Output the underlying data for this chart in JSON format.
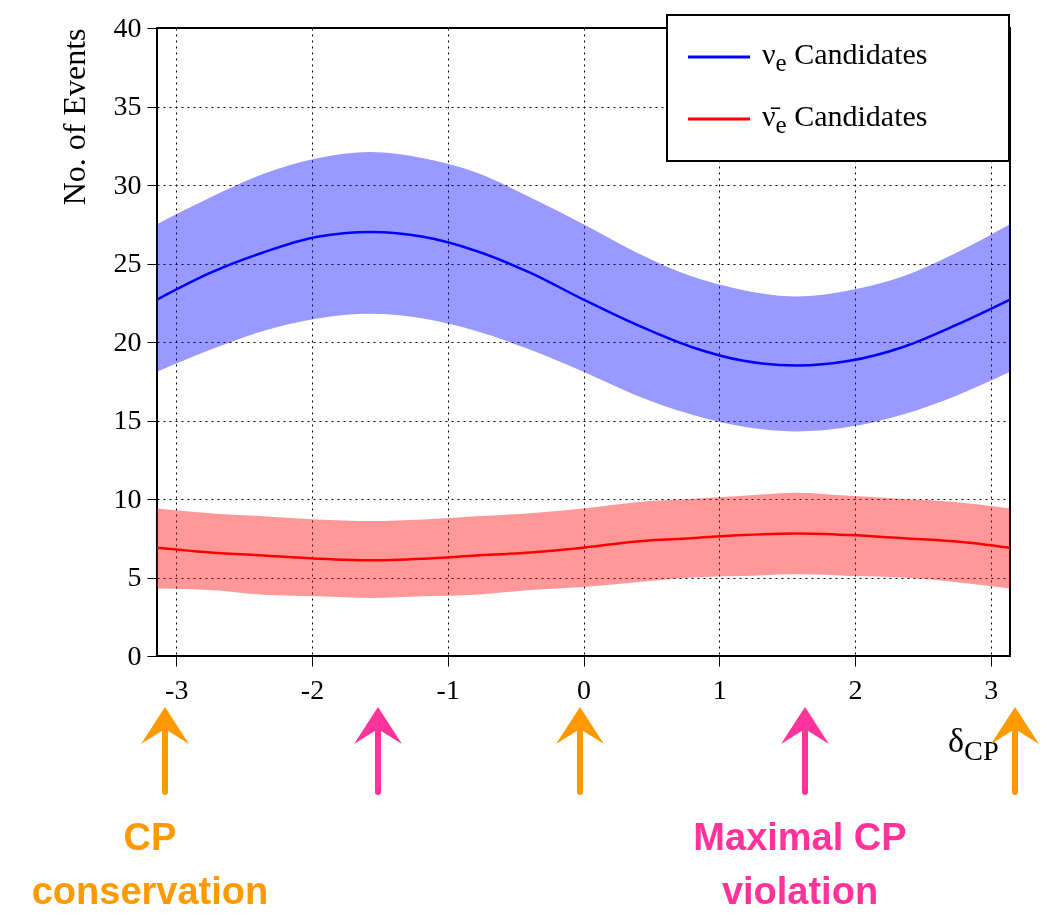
{
  "chart_data": {
    "type": "line",
    "xlabel": "δ$_{CP}$",
    "ylabel": "No. of Events",
    "x": [
      -3.1416,
      -2.75,
      -2.36,
      -1.96,
      -1.57,
      -1.18,
      -0.79,
      -0.39,
      0,
      0.39,
      0.79,
      1.18,
      1.57,
      1.96,
      2.36,
      2.75,
      3.1416
    ],
    "series": [
      {
        "name": "ν$_{e}$ Candidates",
        "color": "#0000ff",
        "values": [
          22.7,
          24.4,
          25.7,
          26.7,
          27.0,
          26.7,
          25.8,
          24.4,
          22.7,
          21.1,
          19.7,
          18.8,
          18.5,
          18.8,
          19.7,
          21.1,
          22.7
        ],
        "lower": [
          18.1,
          19.5,
          20.7,
          21.5,
          21.8,
          21.5,
          20.7,
          19.5,
          18.1,
          16.6,
          15.4,
          14.6,
          14.3,
          14.6,
          15.4,
          16.6,
          18.1
        ],
        "upper": [
          27.5,
          29.2,
          30.7,
          31.7,
          32.1,
          31.7,
          30.8,
          29.2,
          27.5,
          25.7,
          24.2,
          23.3,
          22.9,
          23.3,
          24.2,
          25.7,
          27.5
        ]
      },
      {
        "name": "ν̄$_{e}$ Candidates",
        "color": "#ff0000",
        "values": [
          6.9,
          6.6,
          6.4,
          6.2,
          6.1,
          6.2,
          6.4,
          6.6,
          6.9,
          7.3,
          7.5,
          7.7,
          7.8,
          7.7,
          7.5,
          7.3,
          6.9
        ],
        "lower": [
          4.3,
          4.2,
          3.9,
          3.8,
          3.7,
          3.8,
          3.9,
          4.2,
          4.4,
          4.7,
          5.0,
          5.1,
          5.2,
          5.1,
          5.0,
          4.7,
          4.3
        ],
        "upper": [
          9.4,
          9.1,
          8.9,
          8.7,
          8.6,
          8.7,
          8.9,
          9.1,
          9.4,
          9.8,
          10.0,
          10.2,
          10.4,
          10.2,
          10.0,
          9.8,
          9.4
        ]
      }
    ],
    "xlim": [
      -3.1416,
      3.1416
    ],
    "xticks": [
      -3,
      -2,
      -1,
      0,
      1,
      2,
      3
    ],
    "ylim": [
      0,
      40
    ],
    "yticks": [
      0,
      5,
      10,
      15,
      20,
      25,
      30,
      35,
      40
    ],
    "grid": true,
    "legend": "top right",
    "marker": "none",
    "line_style": "solid",
    "annotations": [
      "CP conservation",
      "Maximal CP violation"
    ]
  }
}
